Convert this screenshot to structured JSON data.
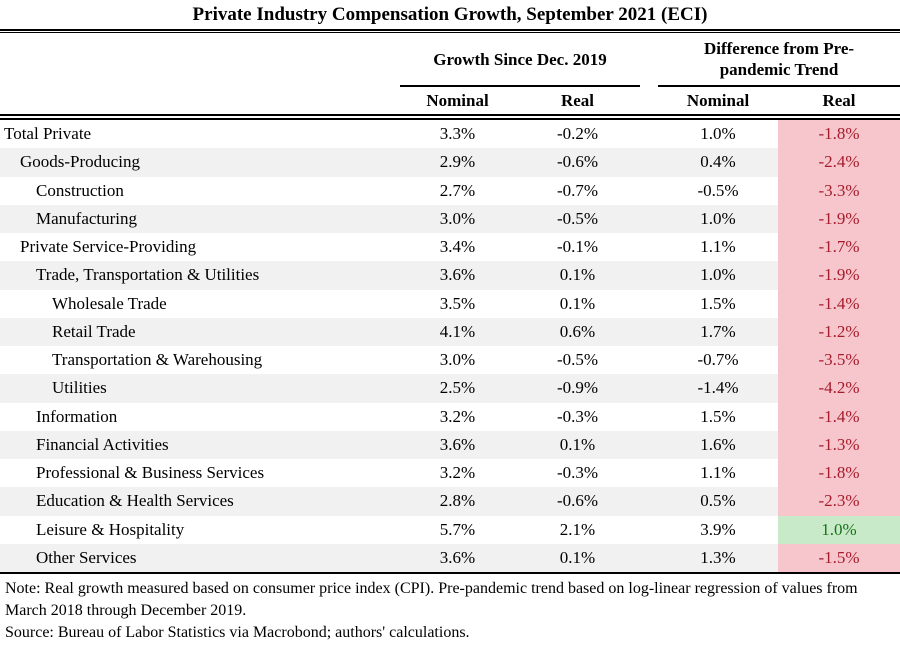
{
  "chart_data": {
    "type": "table",
    "title": "Private Industry Compensation Growth, September 2021 (ECI)",
    "column_groups": [
      {
        "label": "Growth Since Dec. 2019",
        "columns": [
          "Nominal",
          "Real"
        ]
      },
      {
        "label": "Difference from Pre-pandemic Trend",
        "columns": [
          "Nominal",
          "Real"
        ]
      }
    ],
    "rows": [
      {
        "label": "Total Private",
        "indent": 0,
        "values": [
          "3.3%",
          "-0.2%",
          "1.0%",
          "-1.8%"
        ],
        "highlight": "negative"
      },
      {
        "label": "Goods-Producing",
        "indent": 1,
        "values": [
          "2.9%",
          "-0.6%",
          "0.4%",
          "-2.4%"
        ],
        "highlight": "negative"
      },
      {
        "label": "Construction",
        "indent": 2,
        "values": [
          "2.7%",
          "-0.7%",
          "-0.5%",
          "-3.3%"
        ],
        "highlight": "negative"
      },
      {
        "label": "Manufacturing",
        "indent": 2,
        "values": [
          "3.0%",
          "-0.5%",
          "1.0%",
          "-1.9%"
        ],
        "highlight": "negative"
      },
      {
        "label": "Private Service-Providing",
        "indent": 1,
        "values": [
          "3.4%",
          "-0.1%",
          "1.1%",
          "-1.7%"
        ],
        "highlight": "negative"
      },
      {
        "label": "Trade, Transportation & Utilities",
        "indent": 2,
        "values": [
          "3.6%",
          "0.1%",
          "1.0%",
          "-1.9%"
        ],
        "highlight": "negative"
      },
      {
        "label": "Wholesale Trade",
        "indent": 3,
        "values": [
          "3.5%",
          "0.1%",
          "1.5%",
          "-1.4%"
        ],
        "highlight": "negative"
      },
      {
        "label": "Retail Trade",
        "indent": 3,
        "values": [
          "4.1%",
          "0.6%",
          "1.7%",
          "-1.2%"
        ],
        "highlight": "negative"
      },
      {
        "label": "Transportation & Warehousing",
        "indent": 3,
        "values": [
          "3.0%",
          "-0.5%",
          "-0.7%",
          "-3.5%"
        ],
        "highlight": "negative"
      },
      {
        "label": "Utilities",
        "indent": 3,
        "values": [
          "2.5%",
          "-0.9%",
          "-1.4%",
          "-4.2%"
        ],
        "highlight": "negative"
      },
      {
        "label": "Information",
        "indent": 2,
        "values": [
          "3.2%",
          "-0.3%",
          "1.5%",
          "-1.4%"
        ],
        "highlight": "negative"
      },
      {
        "label": "Financial Activities",
        "indent": 2,
        "values": [
          "3.6%",
          "0.1%",
          "1.6%",
          "-1.3%"
        ],
        "highlight": "negative"
      },
      {
        "label": "Professional & Business Services",
        "indent": 2,
        "values": [
          "3.2%",
          "-0.3%",
          "1.1%",
          "-1.8%"
        ],
        "highlight": "negative"
      },
      {
        "label": "Education & Health Services",
        "indent": 2,
        "values": [
          "2.8%",
          "-0.6%",
          "0.5%",
          "-2.3%"
        ],
        "highlight": "negative"
      },
      {
        "label": "Leisure & Hospitality",
        "indent": 2,
        "values": [
          "5.7%",
          "2.1%",
          "3.9%",
          "1.0%"
        ],
        "highlight": "positive"
      },
      {
        "label": "Other Services",
        "indent": 2,
        "values": [
          "3.6%",
          "0.1%",
          "1.3%",
          "-1.5%"
        ],
        "highlight": "negative"
      }
    ],
    "note": "Note: Real growth measured based on consumer price index (CPI). Pre-pandemic trend based on log-linear regression of values from March 2018 through December 2019.",
    "source": "Source: Bureau of Labor Statistics via Macrobond; authors' calculations."
  },
  "colors": {
    "negative_bg": "#f7c6cc",
    "negative_text": "#a51c2c",
    "positive_bg": "#c9eac9",
    "positive_text": "#177317",
    "stripe_bg": "#f1f1f1",
    "rule": "#000000"
  }
}
